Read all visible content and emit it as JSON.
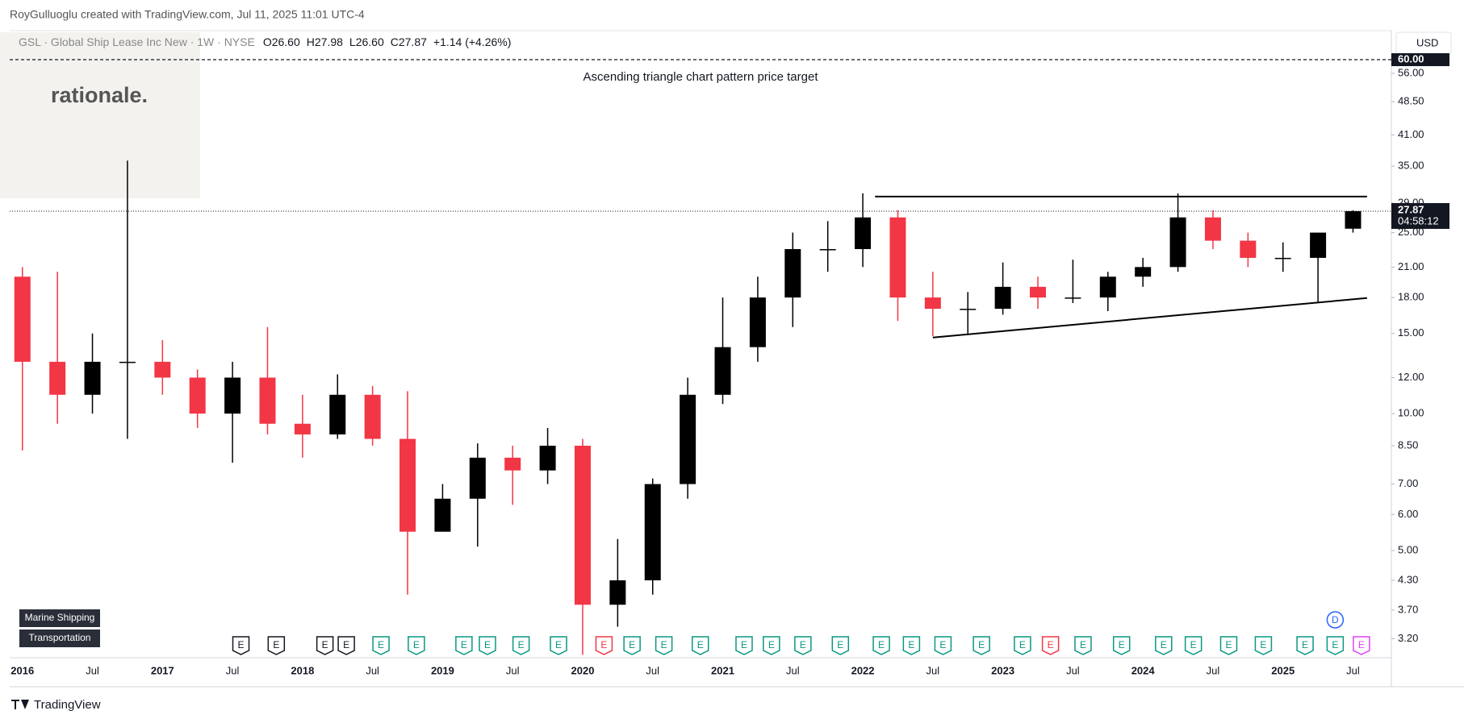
{
  "header": {
    "attribution": "RoyGulluoglu created with TradingView.com, Jul 11, 2025 11:01 UTC-4",
    "symbol": "GSL · Global Ship Lease Inc New · 1W · NYSE",
    "open": "O26.60",
    "high": "H27.98",
    "low": "L26.60",
    "close": "C27.87",
    "change": "+1.14 (+4.26%)",
    "currency": "USD",
    "logo": "rationale.",
    "tags": [
      "Marine Shipping",
      "Transportation"
    ],
    "countdown": "04:58:12",
    "footer": "TradingView"
  },
  "chart_data": {
    "type": "candlestick",
    "categories": [
      "2016",
      null,
      "Jul",
      null,
      "2017",
      null,
      "Jul",
      null,
      "2018",
      null,
      "Jul",
      null,
      "2019",
      null,
      "Jul",
      null,
      "2020",
      null,
      "Jul",
      null,
      "2021",
      null,
      "Jul",
      null,
      "2022",
      null,
      "Jul",
      null,
      "2023",
      null,
      "Jul",
      null,
      "2024",
      null,
      "Jul",
      null,
      "2025",
      null,
      "Jul"
    ],
    "open": [
      20,
      13,
      11,
      13,
      13,
      12,
      10,
      12,
      9.5,
      9,
      11,
      8.8,
      5.5,
      6.5,
      8,
      7.5,
      8.5,
      3.8,
      4.3,
      7,
      11,
      14,
      18,
      23,
      23,
      27,
      18,
      17,
      17,
      19,
      18,
      18,
      20,
      21,
      27,
      24,
      22,
      22,
      25.5
    ],
    "high": [
      21,
      20.5,
      15,
      36,
      14.5,
      12.5,
      13,
      15.5,
      11,
      12.2,
      11.5,
      11.2,
      7,
      8.6,
      8.5,
      9.3,
      8.8,
      5.3,
      7.2,
      12,
      18,
      20,
      25,
      26.5,
      30.5,
      28,
      20.5,
      18.5,
      21.5,
      20,
      21.8,
      20.5,
      22,
      30.5,
      28,
      25,
      23.8,
      25,
      27.98
    ],
    "low": [
      8.3,
      9.5,
      10,
      8.8,
      11,
      9.3,
      7.8,
      9,
      8,
      8.8,
      8.5,
      4.0,
      5.5,
      5.1,
      6.3,
      7,
      2.95,
      3.4,
      4.0,
      6.5,
      10.5,
      13,
      15.5,
      20.5,
      21,
      16,
      14.8,
      15,
      16.5,
      17,
      17.5,
      16.8,
      19,
      20.5,
      23,
      21,
      20.5,
      17.5,
      25
    ],
    "close": [
      13,
      11,
      13,
      13,
      12,
      10,
      12,
      9.5,
      9,
      11,
      8.8,
      5.5,
      6.5,
      8,
      7.5,
      8.5,
      3.8,
      4.3,
      7,
      11,
      14,
      18,
      23,
      23,
      27,
      18,
      17,
      17,
      19,
      18,
      18,
      20,
      21,
      27,
      24,
      22,
      22,
      25,
      27.87
    ],
    "up_color": "#000000",
    "down_color": "#f23645",
    "log_scale": true,
    "grid": false,
    "ylim": [
      2.91,
      68.8
    ],
    "yticks": [
      {
        "value": 3.2,
        "label": "3.20"
      },
      {
        "value": 3.7,
        "label": "3.70"
      },
      {
        "value": 4.3,
        "label": "4.30"
      },
      {
        "value": 5,
        "label": "5.00"
      },
      {
        "value": 6,
        "label": "6.00"
      },
      {
        "value": 7,
        "label": "7.00"
      },
      {
        "value": 8.5,
        "label": "8.50"
      },
      {
        "value": 10,
        "label": "10.00"
      },
      {
        "value": 12,
        "label": "12.00"
      },
      {
        "value": 15,
        "label": "15.00"
      },
      {
        "value": 18,
        "label": "18.00"
      },
      {
        "value": 21,
        "label": "21.00"
      },
      {
        "value": 25,
        "label": "25.00"
      },
      {
        "value": 29,
        "label": "29.00"
      },
      {
        "value": 35,
        "label": "35.00"
      },
      {
        "value": 41,
        "label": "41.00"
      },
      {
        "value": 48.5,
        "label": "48.50"
      },
      {
        "value": 56,
        "label": "56.00"
      }
    ],
    "target": {
      "value": 60,
      "label": "60.00",
      "text": "Ascending triangle chart pattern price target"
    },
    "trendlines": [
      {
        "x": [
          24.35,
          38.4
        ],
        "y": [
          30,
          30
        ]
      },
      {
        "x": [
          26.0,
          38.4
        ],
        "y": [
          14.7,
          17.95
        ]
      }
    ],
    "events": [
      {
        "label": "E",
        "x": 6.24,
        "color": "#131722"
      },
      {
        "label": "E",
        "x": 7.25,
        "color": "#131722"
      },
      {
        "label": "E",
        "x": 8.64,
        "color": "#131722"
      },
      {
        "label": "E",
        "x": 9.25,
        "color": "#131722"
      },
      {
        "label": "E",
        "x": 10.24,
        "color": "#089981"
      },
      {
        "label": "E",
        "x": 11.25,
        "color": "#089981"
      },
      {
        "label": "E",
        "x": 12.61,
        "color": "#089981"
      },
      {
        "label": "E",
        "x": 13.28,
        "color": "#089981"
      },
      {
        "label": "E",
        "x": 14.24,
        "color": "#089981"
      },
      {
        "label": "E",
        "x": 15.31,
        "color": "#089981"
      },
      {
        "label": "E",
        "x": 16.61,
        "color": "#f23645"
      },
      {
        "label": "E",
        "x": 17.41,
        "color": "#089981"
      },
      {
        "label": "E",
        "x": 18.32,
        "color": "#089981"
      },
      {
        "label": "E",
        "x": 19.36,
        "color": "#089981"
      },
      {
        "label": "E",
        "x": 20.61,
        "color": "#089981"
      },
      {
        "label": "E",
        "x": 21.39,
        "color": "#089981"
      },
      {
        "label": "E",
        "x": 22.29,
        "color": "#089981"
      },
      {
        "label": "E",
        "x": 23.36,
        "color": "#089981"
      },
      {
        "label": "E",
        "x": 24.53,
        "color": "#089981"
      },
      {
        "label": "E",
        "x": 25.39,
        "color": "#089981"
      },
      {
        "label": "E",
        "x": 26.29,
        "color": "#089981"
      },
      {
        "label": "E",
        "x": 27.39,
        "color": "#089981"
      },
      {
        "label": "E",
        "x": 28.56,
        "color": "#089981"
      },
      {
        "label": "E",
        "x": 29.36,
        "color": "#f23645"
      },
      {
        "label": "E",
        "x": 30.29,
        "color": "#089981"
      },
      {
        "label": "E",
        "x": 31.39,
        "color": "#089981"
      },
      {
        "label": "E",
        "x": 32.59,
        "color": "#089981"
      },
      {
        "label": "E",
        "x": 33.44,
        "color": "#089981"
      },
      {
        "label": "E",
        "x": 34.45,
        "color": "#089981"
      },
      {
        "label": "E",
        "x": 35.44,
        "color": "#089981"
      },
      {
        "label": "E",
        "x": 36.63,
        "color": "#089981"
      },
      {
        "label": "E",
        "x": 37.49,
        "color": "#089981"
      },
      {
        "label": "E",
        "x": 38.24,
        "color": "#e040fb"
      },
      {
        "label": "D",
        "x": 37.49,
        "color": "#2962ff"
      }
    ]
  }
}
